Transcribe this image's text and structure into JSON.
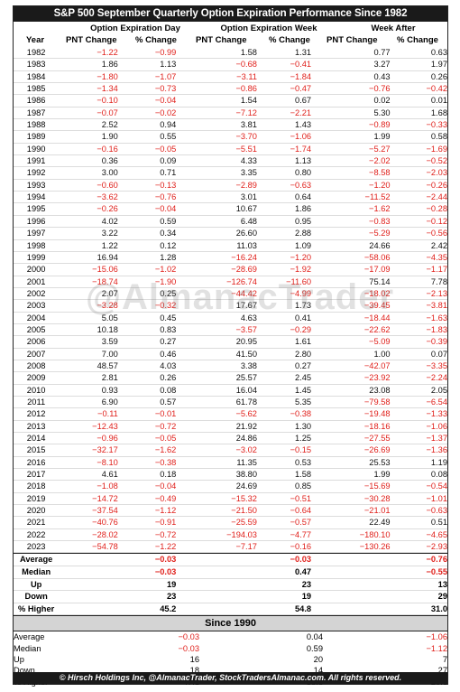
{
  "title": "S&P 500 September Quarterly Option Expiration Performance Since 1982",
  "header": {
    "group1": "Option Expiration Day",
    "group2": "Option Expiration Week",
    "group3": "Week After",
    "year": "Year",
    "pnt": "PNT Change",
    "pct": "% Change"
  },
  "watermark": "@AlmanacTrader",
  "rows": [
    [
      "1982",
      "−1.22",
      "−0.99",
      "1.58",
      "1.31",
      "0.77",
      "0.63"
    ],
    [
      "1983",
      "1.86",
      "1.13",
      "−0.68",
      "−0.41",
      "3.27",
      "1.97"
    ],
    [
      "1984",
      "−1.80",
      "−1.07",
      "−3.11",
      "−1.84",
      "0.43",
      "0.26"
    ],
    [
      "1985",
      "−1.34",
      "−0.73",
      "−0.86",
      "−0.47",
      "−0.76",
      "−0.42"
    ],
    [
      "1986",
      "−0.10",
      "−0.04",
      "1.54",
      "0.67",
      "0.02",
      "0.01"
    ],
    [
      "1987",
      "−0.07",
      "−0.02",
      "−7.12",
      "−2.21",
      "5.30",
      "1.68"
    ],
    [
      "1988",
      "2.52",
      "0.94",
      "3.81",
      "1.43",
      "−0.89",
      "−0.33"
    ],
    [
      "1989",
      "1.90",
      "0.55",
      "−3.70",
      "−1.06",
      "1.99",
      "0.58"
    ],
    [
      "1990",
      "−0.16",
      "−0.05",
      "−5.51",
      "−1.74",
      "−5.27",
      "−1.69"
    ],
    [
      "1991",
      "0.36",
      "0.09",
      "4.33",
      "1.13",
      "−2.02",
      "−0.52"
    ],
    [
      "1992",
      "3.00",
      "0.71",
      "3.35",
      "0.80",
      "−8.58",
      "−2.03"
    ],
    [
      "1993",
      "−0.60",
      "−0.13",
      "−2.89",
      "−0.63",
      "−1.20",
      "−0.26"
    ],
    [
      "1994",
      "−3.62",
      "−0.76",
      "3.01",
      "0.64",
      "−11.52",
      "−2.44"
    ],
    [
      "1995",
      "−0.26",
      "−0.04",
      "10.67",
      "1.86",
      "−1.62",
      "−0.28"
    ],
    [
      "1996",
      "4.02",
      "0.59",
      "6.48",
      "0.95",
      "−0.83",
      "−0.12"
    ],
    [
      "1997",
      "3.22",
      "0.34",
      "26.60",
      "2.88",
      "−5.29",
      "−0.56"
    ],
    [
      "1998",
      "1.22",
      "0.12",
      "11.03",
      "1.09",
      "24.66",
      "2.42"
    ],
    [
      "1999",
      "16.94",
      "1.28",
      "−16.24",
      "−1.20",
      "−58.06",
      "−4.35"
    ],
    [
      "2000",
      "−15.06",
      "−1.02",
      "−28.69",
      "−1.92",
      "−17.09",
      "−1.17"
    ],
    [
      "2001",
      "−18.74",
      "−1.90",
      "−126.74",
      "−11.60",
      "75.14",
      "7.78"
    ],
    [
      "2002",
      "2.07",
      "0.25",
      "−44.42",
      "−4.99",
      "−18.02",
      "−2.13"
    ],
    [
      "2003",
      "−3.28",
      "−0.32",
      "17.67",
      "1.73",
      "−39.45",
      "−3.81"
    ],
    [
      "2004",
      "5.05",
      "0.45",
      "4.63",
      "0.41",
      "−18.44",
      "−1.63"
    ],
    [
      "2005",
      "10.18",
      "0.83",
      "−3.57",
      "−0.29",
      "−22.62",
      "−1.83"
    ],
    [
      "2006",
      "3.59",
      "0.27",
      "20.95",
      "1.61",
      "−5.09",
      "−0.39"
    ],
    [
      "2007",
      "7.00",
      "0.46",
      "41.50",
      "2.80",
      "1.00",
      "0.07"
    ],
    [
      "2008",
      "48.57",
      "4.03",
      "3.38",
      "0.27",
      "−42.07",
      "−3.35"
    ],
    [
      "2009",
      "2.81",
      "0.26",
      "25.57",
      "2.45",
      "−23.92",
      "−2.24"
    ],
    [
      "2010",
      "0.93",
      "0.08",
      "16.04",
      "1.45",
      "23.08",
      "2.05"
    ],
    [
      "2011",
      "6.90",
      "0.57",
      "61.78",
      "5.35",
      "−79.58",
      "−6.54"
    ],
    [
      "2012",
      "−0.11",
      "−0.01",
      "−5.62",
      "−0.38",
      "−19.48",
      "−1.33"
    ],
    [
      "2013",
      "−12.43",
      "−0.72",
      "21.92",
      "1.30",
      "−18.16",
      "−1.06"
    ],
    [
      "2014",
      "−0.96",
      "−0.05",
      "24.86",
      "1.25",
      "−27.55",
      "−1.37"
    ],
    [
      "2015",
      "−32.17",
      "−1.62",
      "−3.02",
      "−0.15",
      "−26.69",
      "−1.36"
    ],
    [
      "2016",
      "−8.10",
      "−0.38",
      "11.35",
      "0.53",
      "25.53",
      "1.19"
    ],
    [
      "2017",
      "4.61",
      "0.18",
      "38.80",
      "1.58",
      "1.99",
      "0.08"
    ],
    [
      "2018",
      "−1.08",
      "−0.04",
      "24.69",
      "0.85",
      "−15.69",
      "−0.54"
    ],
    [
      "2019",
      "−14.72",
      "−0.49",
      "−15.32",
      "−0.51",
      "−30.28",
      "−1.01"
    ],
    [
      "2020",
      "−37.54",
      "−1.12",
      "−21.50",
      "−0.64",
      "−21.01",
      "−0.63"
    ],
    [
      "2021",
      "−40.76",
      "−0.91",
      "−25.59",
      "−0.57",
      "22.49",
      "0.51"
    ],
    [
      "2022",
      "−28.02",
      "−0.72",
      "−194.03",
      "−4.77",
      "−180.10",
      "−4.65"
    ],
    [
      "2023",
      "−54.78",
      "−1.22",
      "−7.17",
      "−0.16",
      "−130.26",
      "−2.93"
    ]
  ],
  "summary": [
    [
      "Average",
      "−0.03",
      "−0.03",
      "−0.76"
    ],
    [
      "Median",
      "−0.03",
      "0.47",
      "−0.55"
    ],
    [
      "Up",
      "19",
      "23",
      "13"
    ],
    [
      "Down",
      "23",
      "19",
      "29"
    ],
    [
      "% Higher",
      "45.2",
      "54.8",
      "31.0"
    ]
  ],
  "since_label": "Since 1990",
  "since": [
    [
      "Average",
      "−0.03",
      "0.04",
      "−1.06"
    ],
    [
      "Median",
      "−0.03",
      "0.59",
      "−1.12"
    ],
    [
      "Up",
      "16",
      "20",
      "7"
    ],
    [
      "Down",
      "18",
      "14",
      "27"
    ],
    [
      "% Higher",
      "47.1",
      "58.8",
      "20.6"
    ]
  ],
  "footer": "© Hirsch Holdings Inc, @AlmanacTrader, StockTradersAlmanac.com. All rights reserved.",
  "colors": {
    "negative": "#e0201b",
    "header_bg": "#1a1a1a",
    "banner_bg": "#d4d4d4"
  }
}
